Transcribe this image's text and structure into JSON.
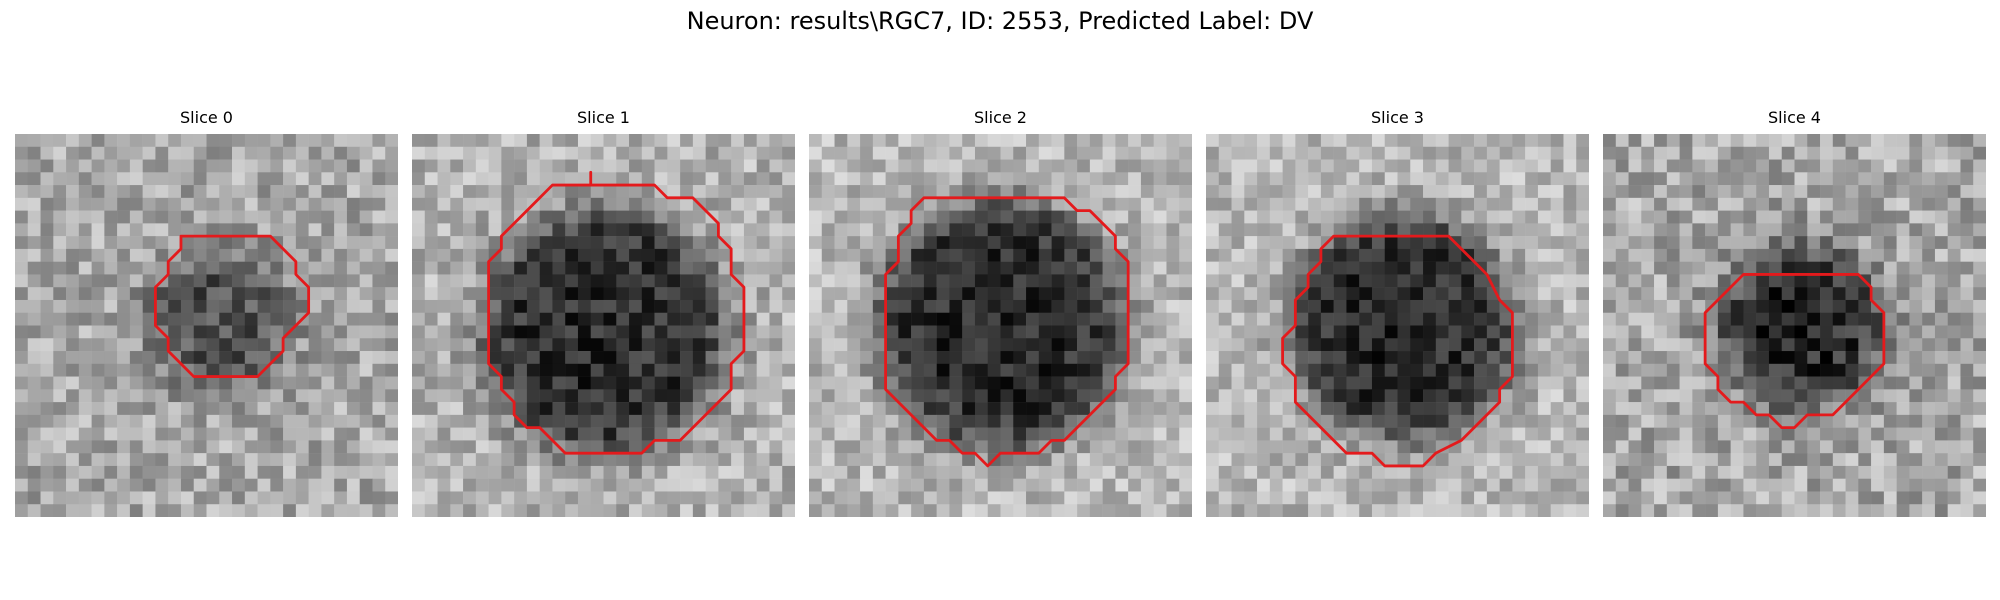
{
  "figure": {
    "title": "Neuron: results\\RGC7, ID: 2553, Predicted Label: DV"
  },
  "colors": {
    "contour": "#e41a1c",
    "background": "#ffffff"
  },
  "panels": [
    {
      "title": "Slice 0",
      "image": {
        "grid": 30,
        "seed": 11,
        "blob_center": [
          16.0,
          14.5
        ],
        "blob_radius": 5.5,
        "blob_darkness": 0.35,
        "base_brightness": 0.66,
        "noise": 0.17
      },
      "contour": [
        [
          13,
          8
        ],
        [
          20,
          8
        ],
        [
          22,
          10
        ],
        [
          22,
          11
        ],
        [
          23,
          12
        ],
        [
          23,
          14
        ],
        [
          22,
          15
        ],
        [
          21,
          16
        ],
        [
          21,
          17
        ],
        [
          20,
          18
        ],
        [
          19,
          19
        ],
        [
          14,
          19
        ],
        [
          13,
          18
        ],
        [
          12,
          17
        ],
        [
          12,
          16
        ],
        [
          11,
          15
        ],
        [
          11,
          12
        ],
        [
          12,
          11
        ],
        [
          12,
          10
        ],
        [
          13,
          9
        ]
      ]
    },
    {
      "title": "Slice 1",
      "image": {
        "grid": 30,
        "seed": 23,
        "blob_center": [
          15.0,
          15.5
        ],
        "blob_radius": 9.6,
        "blob_darkness": 0.52,
        "base_brightness": 0.7,
        "noise": 0.16
      },
      "contour": [
        [
          13,
          4
        ],
        [
          14,
          4
        ],
        [
          14,
          3
        ],
        [
          14,
          4
        ],
        [
          19,
          4
        ],
        [
          20,
          5
        ],
        [
          22,
          5
        ],
        [
          24,
          7
        ],
        [
          24,
          8
        ],
        [
          25,
          9
        ],
        [
          25,
          10
        ],
        [
          25,
          11
        ],
        [
          26,
          12
        ],
        [
          26,
          17
        ],
        [
          25,
          18
        ],
        [
          25,
          20
        ],
        [
          24,
          21
        ],
        [
          23,
          22
        ],
        [
          22,
          23
        ],
        [
          21,
          24
        ],
        [
          19,
          24
        ],
        [
          18,
          25
        ],
        [
          12,
          25
        ],
        [
          11,
          24
        ],
        [
          10,
          23
        ],
        [
          9,
          23
        ],
        [
          8,
          22
        ],
        [
          8,
          21
        ],
        [
          7,
          20
        ],
        [
          7,
          19
        ],
        [
          6,
          18
        ],
        [
          6,
          17
        ],
        [
          6,
          13
        ],
        [
          6,
          10
        ],
        [
          7,
          9
        ],
        [
          7,
          8
        ],
        [
          8,
          7
        ],
        [
          9,
          6
        ],
        [
          10,
          5
        ],
        [
          11,
          4
        ],
        [
          12,
          4
        ],
        [
          13,
          4
        ]
      ]
    },
    {
      "title": "Slice 2",
      "image": {
        "grid": 30,
        "seed": 37,
        "blob_center": [
          15.0,
          15.0
        ],
        "blob_radius": 9.8,
        "blob_darkness": 0.55,
        "base_brightness": 0.72,
        "noise": 0.15
      },
      "contour": [
        [
          10,
          5
        ],
        [
          20,
          5
        ],
        [
          21,
          6
        ],
        [
          22,
          6
        ],
        [
          24,
          8
        ],
        [
          24,
          9
        ],
        [
          25,
          10
        ],
        [
          25,
          13
        ],
        [
          25,
          18
        ],
        [
          24,
          19
        ],
        [
          24,
          20
        ],
        [
          23,
          21
        ],
        [
          22,
          22
        ],
        [
          21,
          23
        ],
        [
          20,
          24
        ],
        [
          19,
          24
        ],
        [
          18,
          25
        ],
        [
          15,
          25
        ],
        [
          14,
          26
        ],
        [
          13,
          25
        ],
        [
          12,
          25
        ],
        [
          11,
          24
        ],
        [
          10,
          24
        ],
        [
          9,
          23
        ],
        [
          8,
          22
        ],
        [
          7,
          21
        ],
        [
          6,
          20
        ],
        [
          6,
          18
        ],
        [
          6,
          11
        ],
        [
          7,
          10
        ],
        [
          7,
          8
        ],
        [
          8,
          7
        ],
        [
          8,
          6
        ],
        [
          9,
          5
        ],
        [
          10,
          5
        ]
      ]
    },
    {
      "title": "Slice 3",
      "image": {
        "grid": 30,
        "seed": 41,
        "blob_center": [
          15.5,
          15.2
        ],
        "blob_radius": 8.8,
        "blob_darkness": 0.56,
        "base_brightness": 0.72,
        "noise": 0.15
      },
      "contour": [
        [
          10,
          8
        ],
        [
          19,
          8
        ],
        [
          20,
          9
        ],
        [
          21,
          10
        ],
        [
          22,
          11
        ],
        [
          23,
          13
        ],
        [
          24,
          14
        ],
        [
          24,
          19
        ],
        [
          23,
          20
        ],
        [
          23,
          21
        ],
        [
          22,
          22
        ],
        [
          21,
          23
        ],
        [
          20,
          24
        ],
        [
          18,
          25
        ],
        [
          17,
          26
        ],
        [
          14,
          26
        ],
        [
          13,
          25
        ],
        [
          11,
          25
        ],
        [
          10,
          24
        ],
        [
          9,
          23
        ],
        [
          8,
          22
        ],
        [
          7,
          21
        ],
        [
          7,
          19
        ],
        [
          6,
          18
        ],
        [
          6,
          16
        ],
        [
          7,
          15
        ],
        [
          7,
          13
        ],
        [
          8,
          12
        ],
        [
          8,
          11
        ],
        [
          9,
          10
        ],
        [
          9,
          9
        ],
        [
          10,
          8
        ]
      ]
    },
    {
      "title": "Slice 4",
      "image": {
        "grid": 30,
        "seed": 53,
        "blob_center": [
          15.5,
          15.0
        ],
        "blob_radius": 6.4,
        "blob_darkness": 0.5,
        "base_brightness": 0.66,
        "noise": 0.18
      },
      "contour": [
        [
          11,
          11
        ],
        [
          20,
          11
        ],
        [
          21,
          12
        ],
        [
          21,
          13
        ],
        [
          22,
          14
        ],
        [
          22,
          18
        ],
        [
          21,
          19
        ],
        [
          20,
          20
        ],
        [
          19,
          21
        ],
        [
          18,
          22
        ],
        [
          16,
          22
        ],
        [
          15,
          23
        ],
        [
          14,
          23
        ],
        [
          13,
          22
        ],
        [
          12,
          22
        ],
        [
          11,
          21
        ],
        [
          10,
          21
        ],
        [
          9,
          20
        ],
        [
          9,
          19
        ],
        [
          8,
          18
        ],
        [
          8,
          14
        ],
        [
          9,
          13
        ],
        [
          10,
          12
        ],
        [
          11,
          11
        ]
      ]
    }
  ]
}
